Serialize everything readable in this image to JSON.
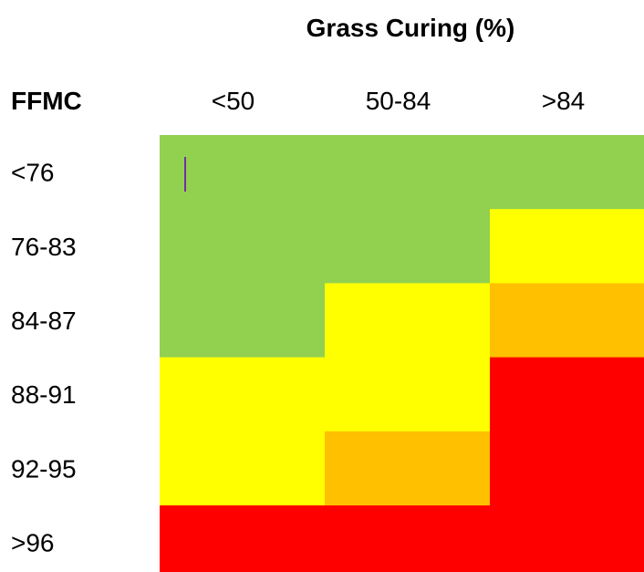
{
  "chart_data": {
    "type": "heatmap",
    "title": "Grass Curing (%)",
    "xlabel": "Grass Curing (%)",
    "ylabel": "FFMC",
    "x_categories": [
      "<50",
      "50-84",
      ">84"
    ],
    "y_categories": [
      "<76",
      "76-83",
      "84-87",
      "88-91",
      "92-95",
      ">96"
    ],
    "cells": [
      [
        "green",
        "green",
        "green"
      ],
      [
        "green",
        "green",
        "yellow"
      ],
      [
        "green",
        "yellow",
        "orange"
      ],
      [
        "yellow",
        "yellow",
        "red"
      ],
      [
        "yellow",
        "orange",
        "red"
      ],
      [
        "red",
        "red",
        "red"
      ]
    ],
    "colors": {
      "green": "#92d050",
      "yellow": "#ffff00",
      "orange": "#ffc000",
      "red": "#ff0000"
    },
    "cursor_color": "#7030a0"
  }
}
